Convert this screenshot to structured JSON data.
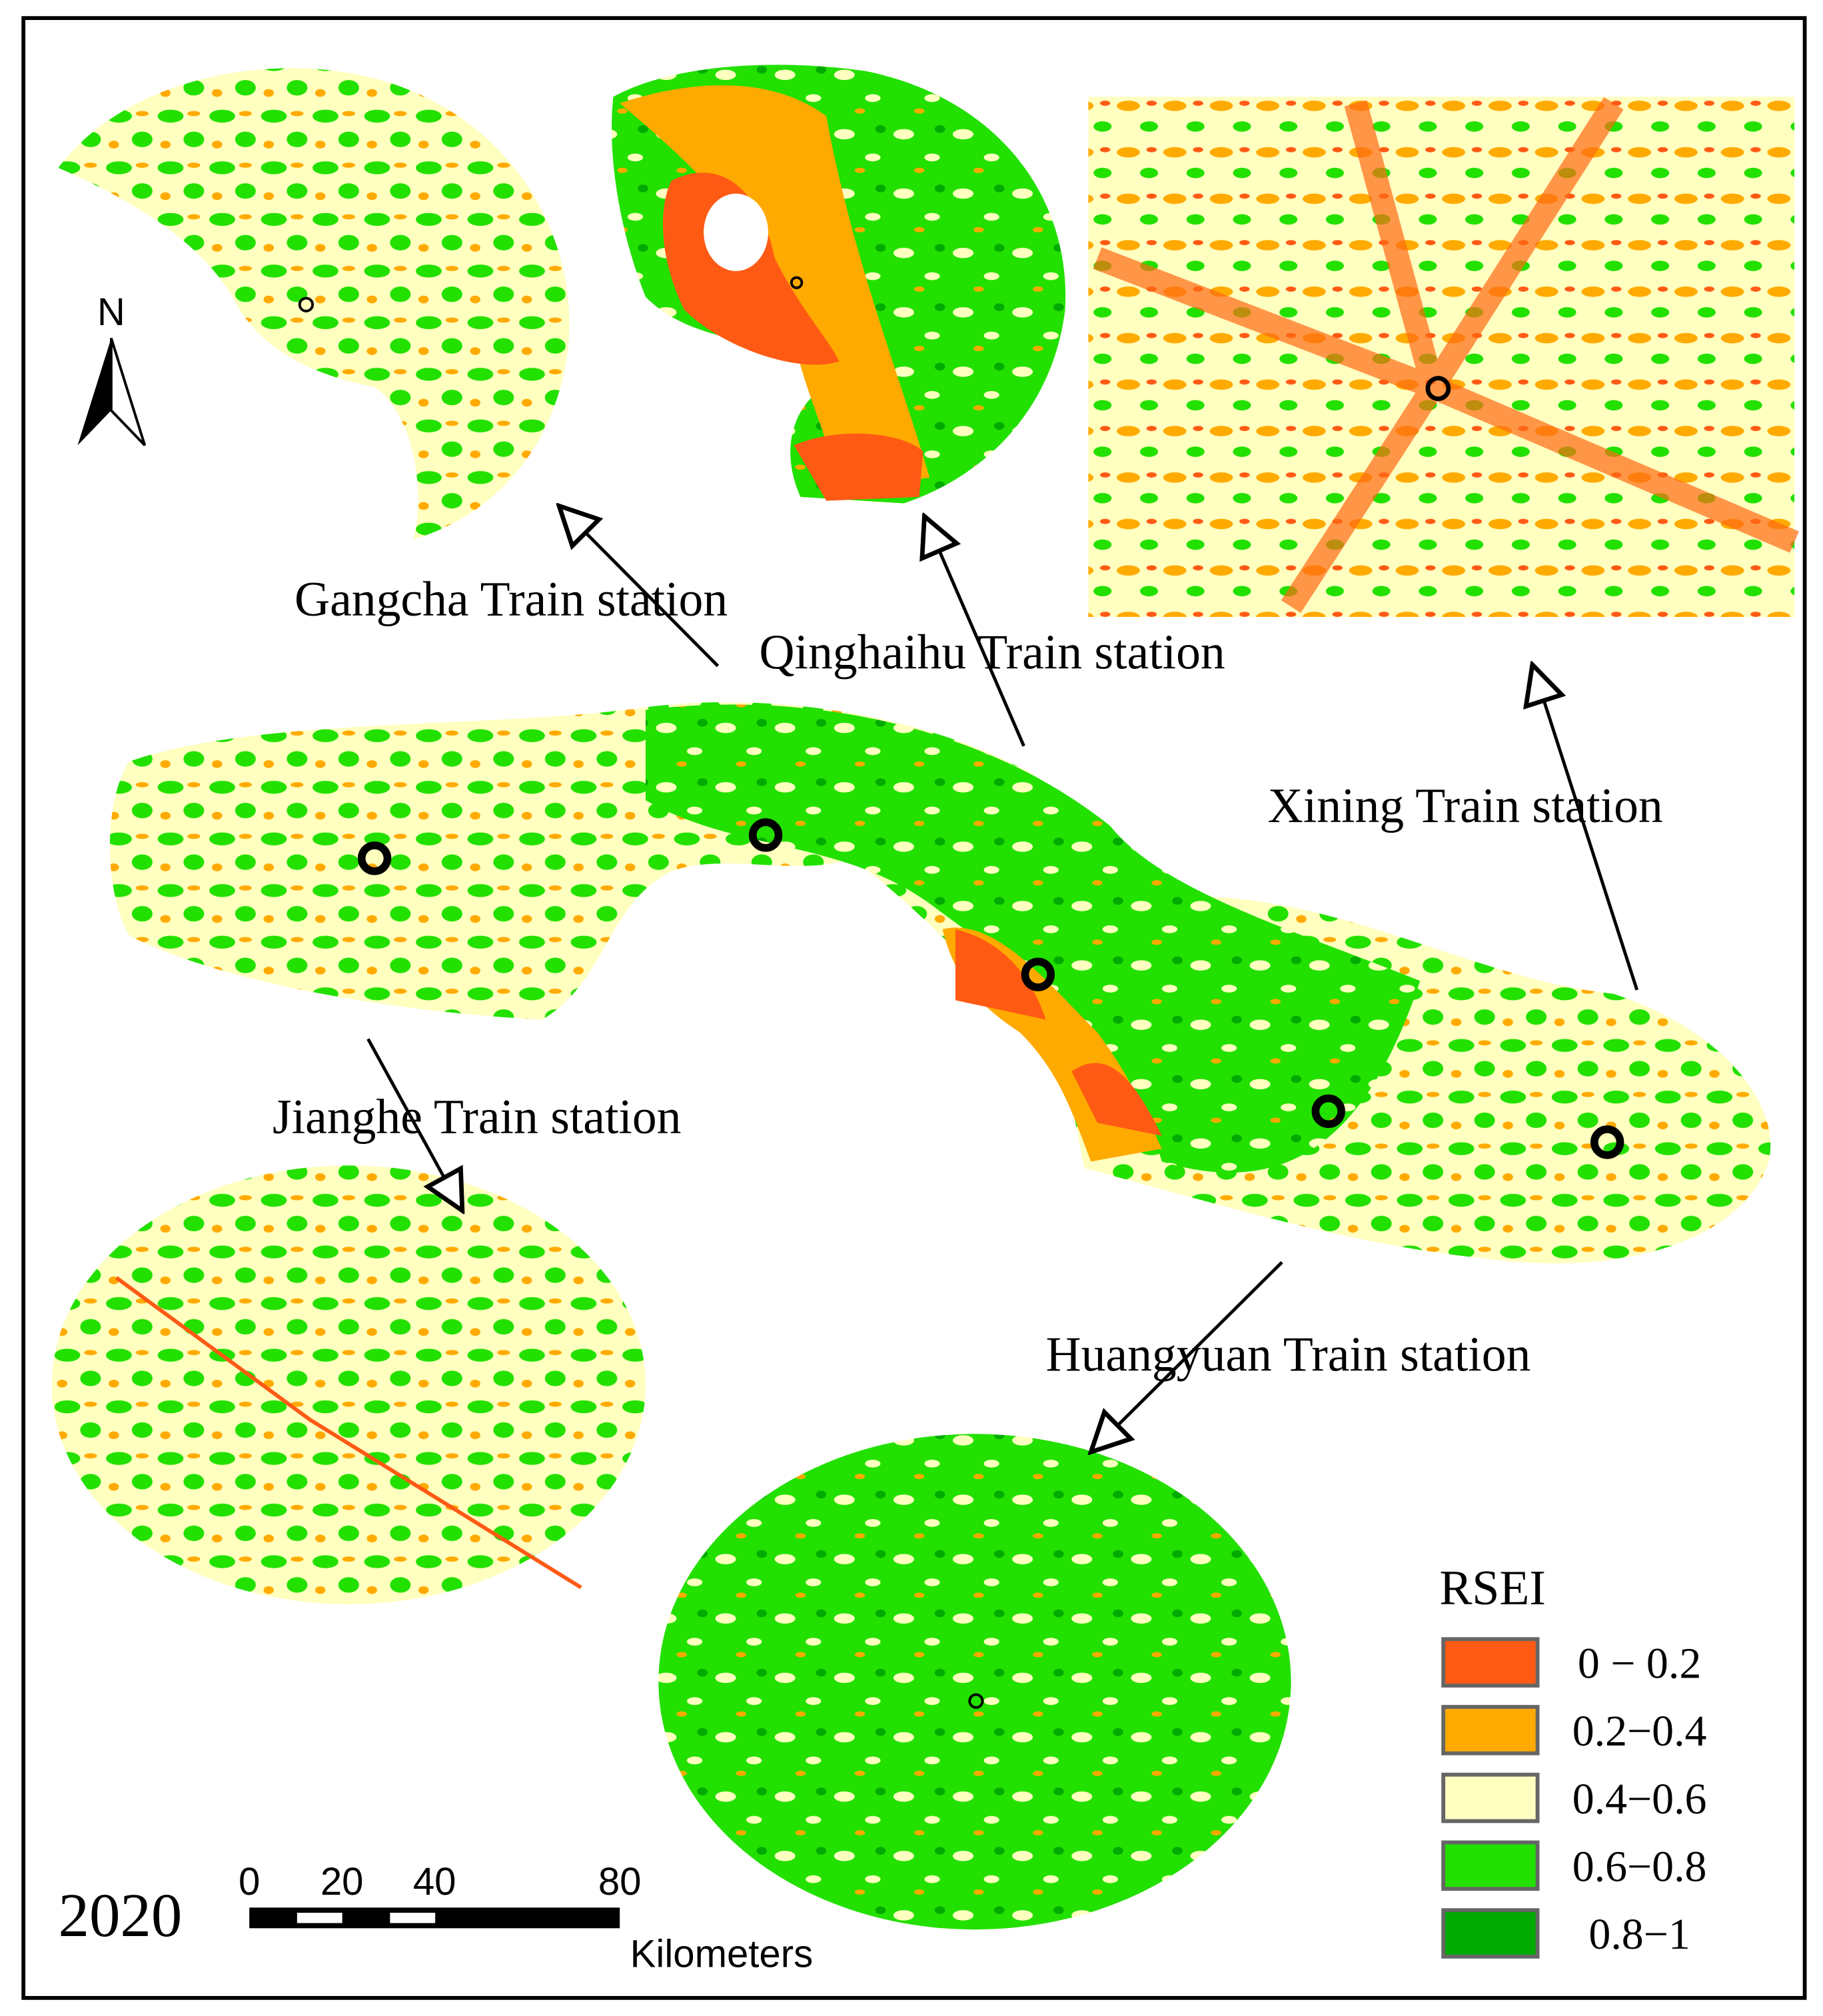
{
  "north_label": "N",
  "stations": [
    {
      "label": "Gangcha Train station"
    },
    {
      "label": "Qinghaihu Train station"
    },
    {
      "label": "Xining Train station"
    },
    {
      "label": "Jianghe Train station"
    },
    {
      "label": "Huangyuan Train station"
    }
  ],
  "legend": {
    "title": "RSEI",
    "items": [
      {
        "label": "0 − 0.2",
        "color": "#ff5a14"
      },
      {
        "label": "0.2−0.4",
        "color": "#ffaa00"
      },
      {
        "label": "0.4−0.6",
        "color": "#ffffc0"
      },
      {
        "label": "0.6−0.8",
        "color": "#22e000"
      },
      {
        "label": "0.8−1",
        "color": "#00aa00"
      }
    ]
  },
  "year": "2020",
  "scale_bar": {
    "ticks": [
      0,
      20,
      40,
      80
    ],
    "unit": "Kilometers"
  }
}
